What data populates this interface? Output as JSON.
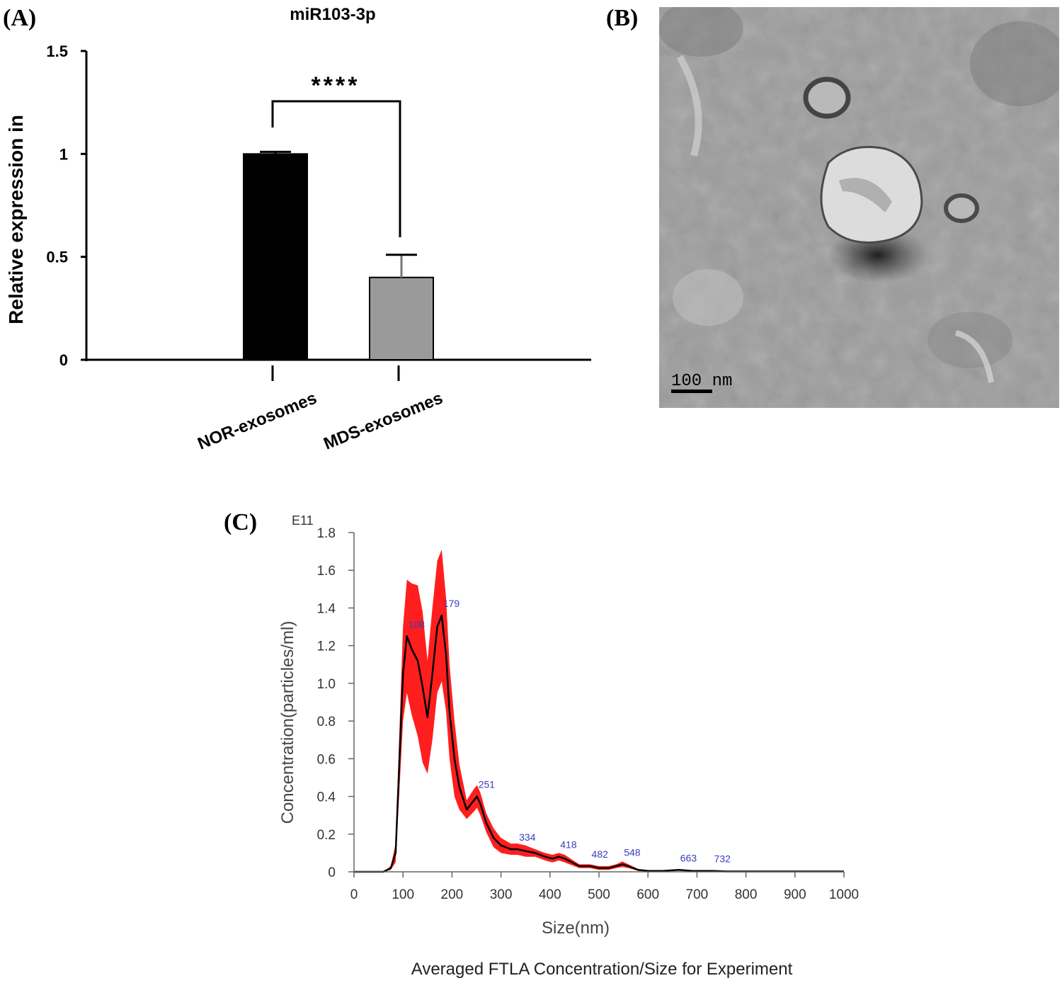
{
  "panels": {
    "a": "(A)",
    "b": "(B)",
    "c": "(C)"
  },
  "chart_data": [
    {
      "type": "bar",
      "title": "miR103-3p",
      "ylabel": "Relative expression in",
      "xlabel": "",
      "categories": [
        "NOR-exosomes",
        "MDS-exosomes"
      ],
      "values": [
        1.0,
        0.4
      ],
      "error": [
        0.01,
        0.11
      ],
      "bar_colors": [
        "#000000",
        "#9a9a9a"
      ],
      "ylim": [
        0,
        1.5
      ],
      "yticks": [
        "0",
        "0.5",
        "1",
        "1.5"
      ],
      "significance": "****",
      "grid": false
    },
    {
      "type": "line",
      "title": "Averaged FTLA Concentration/Size for Experiment",
      "xlabel": "Size(nm)",
      "ylabel": "Concentration(particles/ml)",
      "y_multiplier": "E11",
      "xlim": [
        0,
        1000
      ],
      "ylim": [
        0,
        1.8
      ],
      "xticks": [
        "0",
        "100",
        "200",
        "300",
        "400",
        "500",
        "600",
        "700",
        "800",
        "900",
        "1000"
      ],
      "yticks": [
        "0",
        "0.2",
        "0.4",
        "0.6",
        "0.8",
        "1.0",
        "1.2",
        "1.4",
        "1.6",
        "1.8"
      ],
      "series": [
        {
          "x": [
            0,
            60,
            75,
            85,
            92,
            100,
            108,
            118,
            130,
            140,
            150,
            160,
            170,
            179,
            188,
            195,
            205,
            215,
            230,
            245,
            251,
            258,
            270,
            285,
            300,
            320,
            334,
            350,
            370,
            390,
            405,
            418,
            430,
            445,
            460,
            482,
            500,
            520,
            535,
            548,
            560,
            580,
            600,
            630,
            663,
            690,
            732,
            760,
            800,
            850,
            900,
            1000
          ],
          "y": [
            0,
            0,
            0.02,
            0.1,
            0.55,
            1.05,
            1.25,
            1.18,
            1.12,
            0.98,
            0.82,
            1.05,
            1.3,
            1.36,
            1.15,
            0.85,
            0.6,
            0.45,
            0.33,
            0.38,
            0.4,
            0.36,
            0.26,
            0.18,
            0.14,
            0.12,
            0.12,
            0.11,
            0.1,
            0.08,
            0.07,
            0.08,
            0.07,
            0.05,
            0.03,
            0.03,
            0.02,
            0.02,
            0.03,
            0.04,
            0.03,
            0.01,
            0.005,
            0.005,
            0.01,
            0.005,
            0.005,
            0.002,
            0.002,
            0.002,
            0.002,
            0.002
          ],
          "band_width": [
            0,
            0,
            0.01,
            0.05,
            0.15,
            0.25,
            0.3,
            0.35,
            0.4,
            0.4,
            0.3,
            0.35,
            0.35,
            0.35,
            0.3,
            0.25,
            0.2,
            0.12,
            0.05,
            0.06,
            0.06,
            0.06,
            0.05,
            0.05,
            0.04,
            0.03,
            0.03,
            0.03,
            0.02,
            0.02,
            0.02,
            0.02,
            0.02,
            0.015,
            0.01,
            0.01,
            0.01,
            0.01,
            0.01,
            0.015,
            0.01,
            0.005,
            0.002,
            0.002,
            0.003,
            0.002,
            0.002,
            0.001,
            0.001,
            0.001,
            0.001,
            0.001
          ],
          "line_color": "#000000",
          "band_color": "#ff1e1e"
        }
      ],
      "peak_labels": [
        {
          "x": 108,
          "y": 1.25,
          "label": "108"
        },
        {
          "x": 179,
          "y": 1.36,
          "label": "179"
        },
        {
          "x": 251,
          "y": 0.4,
          "label": "251"
        },
        {
          "x": 334,
          "y": 0.12,
          "label": "334"
        },
        {
          "x": 418,
          "y": 0.08,
          "label": "418"
        },
        {
          "x": 482,
          "y": 0.03,
          "label": "482"
        },
        {
          "x": 548,
          "y": 0.04,
          "label": "548"
        },
        {
          "x": 663,
          "y": 0.01,
          "label": "663"
        },
        {
          "x": 732,
          "y": 0.005,
          "label": "732"
        }
      ],
      "peak_label_color": "#3b3bbf"
    }
  ],
  "micrograph": {
    "scale_label": "100 nm"
  }
}
